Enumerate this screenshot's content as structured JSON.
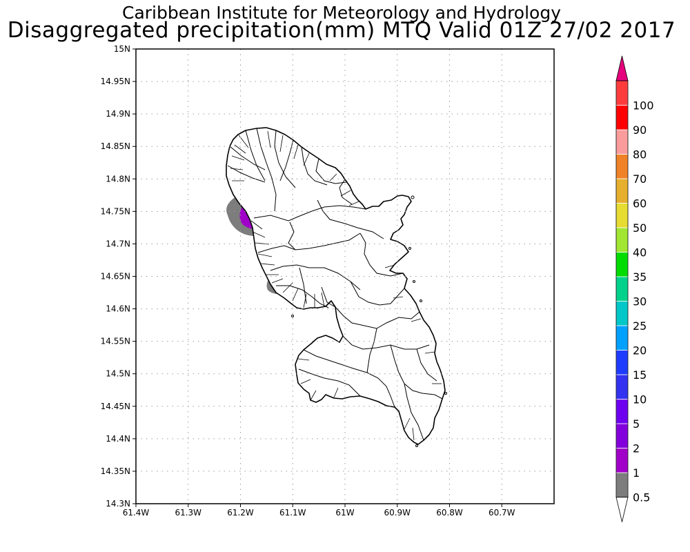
{
  "header": {
    "title_line1": "Caribbean Institute for Meteorology and Hydrology",
    "title_line2": "Disaggregated precipitation(mm) MTQ Valid 01Z 27/02 2017"
  },
  "map": {
    "lon_ticks": [
      {
        "value": -61.4,
        "label": "61.4W"
      },
      {
        "value": -61.3,
        "label": "61.3W"
      },
      {
        "value": -61.2,
        "label": "61.2W"
      },
      {
        "value": -61.1,
        "label": "61.1W"
      },
      {
        "value": -61.0,
        "label": "61W"
      },
      {
        "value": -60.9,
        "label": "60.9W"
      },
      {
        "value": -60.8,
        "label": "60.8W"
      },
      {
        "value": -60.7,
        "label": "60.7W"
      }
    ],
    "lat_ticks": [
      {
        "value": 15.0,
        "label": "15N"
      },
      {
        "value": 14.95,
        "label": "14.95N"
      },
      {
        "value": 14.9,
        "label": "14.9N"
      },
      {
        "value": 14.85,
        "label": "14.85N"
      },
      {
        "value": 14.8,
        "label": "14.8N"
      },
      {
        "value": 14.75,
        "label": "14.75N"
      },
      {
        "value": 14.7,
        "label": "14.7N"
      },
      {
        "value": 14.65,
        "label": "14.65N"
      },
      {
        "value": 14.6,
        "label": "14.6N"
      },
      {
        "value": 14.55,
        "label": "14.55N"
      },
      {
        "value": 14.5,
        "label": "14.5N"
      },
      {
        "value": 14.45,
        "label": "14.45N"
      },
      {
        "value": 14.4,
        "label": "14.4N"
      },
      {
        "value": 14.35,
        "label": "14.35N"
      },
      {
        "value": 14.3,
        "label": "14.3N"
      }
    ],
    "lon_range": [
      -61.4,
      -60.6
    ],
    "lat_range": [
      14.3,
      15.0
    ],
    "grid": true
  },
  "colorbar": {
    "levels": [
      "0.5",
      "1",
      "2",
      "5",
      "10",
      "15",
      "20",
      "25",
      "30",
      "35",
      "40",
      "50",
      "60",
      "70",
      "80",
      "90",
      "100"
    ],
    "colors": [
      "#7d7d7d",
      "#a000c8",
      "#8200dc",
      "#6e00f0",
      "#3232f0",
      "#1e3cff",
      "#00a0ff",
      "#00c8c8",
      "#00d28c",
      "#00dc00",
      "#a0e632",
      "#e6dc32",
      "#e6af2d",
      "#f08228",
      "#fa9c9c",
      "#ff0000",
      "#ff3c3c"
    ],
    "over_color": "#e6007d",
    "under_color": "#ffffff"
  }
}
